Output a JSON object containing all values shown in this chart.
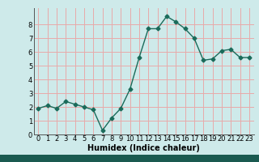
{
  "x": [
    0,
    1,
    2,
    3,
    4,
    5,
    6,
    7,
    8,
    9,
    10,
    11,
    12,
    13,
    14,
    15,
    16,
    17,
    18,
    19,
    20,
    21,
    22,
    23
  ],
  "y": [
    1.9,
    2.1,
    1.9,
    2.4,
    2.2,
    2.0,
    1.8,
    0.3,
    1.2,
    1.9,
    3.3,
    5.6,
    7.7,
    7.7,
    8.6,
    8.2,
    7.7,
    7.0,
    5.4,
    5.5,
    6.1,
    6.2,
    5.6,
    5.6
  ],
  "xlabel": "Humidex (Indice chaleur)",
  "xlim": [
    -0.5,
    23.5
  ],
  "ylim": [
    0,
    9.2
  ],
  "yticks": [
    0,
    1,
    2,
    3,
    4,
    5,
    6,
    7,
    8
  ],
  "xticks": [
    0,
    1,
    2,
    3,
    4,
    5,
    6,
    7,
    8,
    9,
    10,
    11,
    12,
    13,
    14,
    15,
    16,
    17,
    18,
    19,
    20,
    21,
    22,
    23
  ],
  "line_color": "#1a6b5a",
  "marker": "D",
  "marker_size": 2.5,
  "line_width": 1.0,
  "bg_color": "#ceeaea",
  "grid_color": "#e8aaaa",
  "xlabel_fontsize": 7,
  "tick_fontsize": 6,
  "bottom_bar_color": "#1a5a50",
  "bottom_bar_height": 0.045
}
